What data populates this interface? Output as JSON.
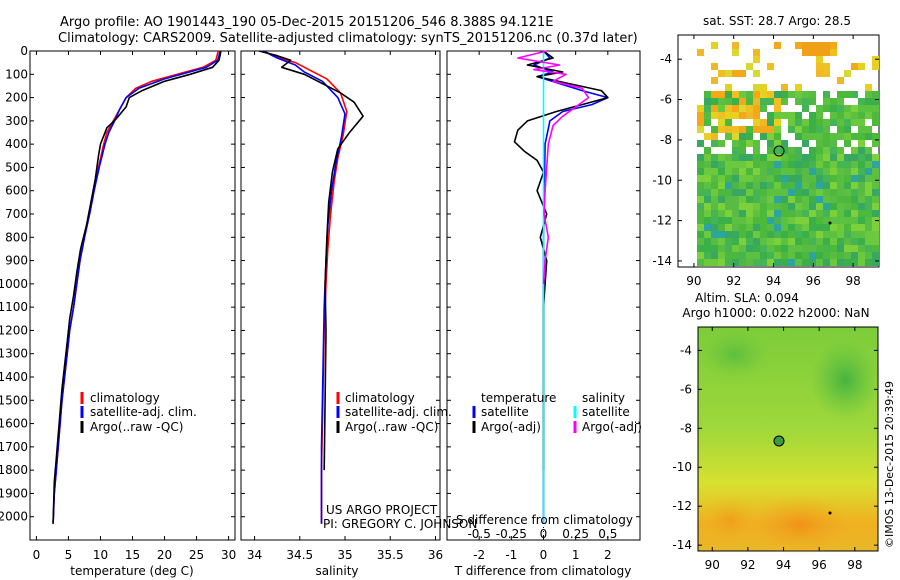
{
  "header": {
    "line1": "Argo profile: AO 1901443_190 05-Dec-2015 20151206_546 8.388S 94.121E",
    "line2": "Climatology: CARS2009. Satellite-adjusted climatology: synTS_20151206.nc (0.37d later)"
  },
  "colors": {
    "climatology": "#ff0000",
    "satellite": "#0000ff",
    "argo": "#000000",
    "sat_salinity": "#00ffff",
    "argo_salinity": "#ff00ff"
  },
  "chart_data": [
    {
      "id": "temperature",
      "type": "line",
      "xlabel": "temperature (deg C)",
      "ylim": [
        2100,
        0
      ],
      "xlim": [
        -1,
        31
      ],
      "xticks": [
        "0",
        "5",
        "10",
        "15",
        "20",
        "25",
        "30"
      ],
      "xtick_values": [
        0,
        5,
        10,
        15,
        20,
        25,
        30
      ],
      "yticks": [
        "0",
        "100",
        "200",
        "300",
        "400",
        "500",
        "600",
        "700",
        "800",
        "900",
        "1000",
        "1100",
        "1200",
        "1300",
        "1400",
        "1500",
        "1600",
        "1700",
        "1800",
        "1900",
        "2000"
      ],
      "legend": [
        "climatology",
        "satellite-adj. clim.",
        "Argo(..raw -QC)"
      ],
      "series": [
        {
          "name": "climatology",
          "color": "#ff0000",
          "x": [
            28.4,
            28.0,
            26.0,
            22.0,
            18.0,
            15.5,
            14.0,
            13.0,
            12.0,
            11.0,
            10.5,
            9.7,
            9.0,
            8.3,
            7.5,
            6.8,
            6.3,
            5.8,
            5.2,
            4.8,
            4.4,
            4.0,
            3.7,
            3.4,
            3.1,
            2.8,
            2.6
          ],
          "y": [
            0,
            40,
            70,
            100,
            130,
            160,
            200,
            250,
            300,
            350,
            400,
            500,
            600,
            700,
            800,
            900,
            1000,
            1100,
            1200,
            1300,
            1400,
            1500,
            1600,
            1700,
            1800,
            1900,
            2030
          ]
        },
        {
          "name": "satellite-adj. clim.",
          "color": "#0000ff",
          "x": [
            28.7,
            28.3,
            26.5,
            20.0,
            16.0,
            14.0,
            13.0,
            12.2,
            11.3,
            10.7,
            9.8,
            9.0,
            8.3,
            7.5,
            6.8,
            6.3,
            5.8,
            5.2,
            4.8,
            4.4,
            4.0,
            3.7,
            3.4,
            3.1,
            2.8,
            2.6
          ],
          "y": [
            0,
            40,
            70,
            120,
            160,
            200,
            250,
            300,
            350,
            400,
            500,
            600,
            700,
            800,
            900,
            1000,
            1100,
            1200,
            1300,
            1400,
            1500,
            1600,
            1700,
            1800,
            1900,
            2030
          ]
        },
        {
          "name": "Argo(..raw -QC)",
          "color": "#000000",
          "x": [
            28.8,
            28.5,
            27.5,
            24.0,
            20.0,
            16.5,
            14.5,
            14.0,
            12.5,
            11.0,
            10.0,
            9.7,
            9.2,
            8.5,
            7.8,
            6.9,
            6.3,
            5.8,
            5.2,
            4.8,
            4.4,
            4.0,
            3.7,
            3.4,
            3.1,
            2.8,
            2.6
          ],
          "y": [
            0,
            40,
            70,
            100,
            130,
            170,
            200,
            240,
            290,
            330,
            400,
            450,
            550,
            650,
            750,
            850,
            950,
            1050,
            1150,
            1250,
            1350,
            1450,
            1550,
            1650,
            1750,
            1850,
            2030
          ]
        }
      ]
    },
    {
      "id": "salinity",
      "type": "line",
      "xlabel": "salinity",
      "ylim": [
        2100,
        0
      ],
      "xlim": [
        33.85,
        36.05
      ],
      "xticks": [
        "34",
        "34.5",
        "35",
        "35.5",
        "36"
      ],
      "xtick_values": [
        34,
        34.5,
        35,
        35.5,
        36
      ],
      "legend": [
        "climatology",
        "satellite-adj. clim.",
        "Argo(..raw -QC)"
      ],
      "series": [
        {
          "name": "climatology",
          "color": "#ff0000",
          "x": [
            34.1,
            34.2,
            34.45,
            34.6,
            34.8,
            34.95,
            35.02,
            34.98,
            34.92,
            34.88,
            34.84,
            34.81,
            34.79,
            34.77,
            34.76,
            34.75,
            34.74,
            34.74,
            34.74
          ],
          "y": [
            0,
            20,
            50,
            80,
            120,
            180,
            260,
            360,
            460,
            560,
            700,
            850,
            1000,
            1200,
            1400,
            1600,
            1800,
            1950,
            2030
          ]
        },
        {
          "name": "satellite-adj. clim.",
          "color": "#0000ff",
          "x": [
            34.1,
            34.25,
            34.45,
            34.55,
            34.75,
            34.92,
            35.0,
            34.96,
            34.9,
            34.85,
            34.81,
            34.79,
            34.77,
            34.76,
            34.75,
            34.74,
            34.74,
            34.74
          ],
          "y": [
            0,
            30,
            60,
            90,
            130,
            200,
            270,
            370,
            480,
            600,
            750,
            900,
            1100,
            1300,
            1500,
            1700,
            1900,
            2030
          ]
        },
        {
          "name": "Argo(..raw -QC)",
          "color": "#000000",
          "x": [
            34.05,
            34.25,
            34.4,
            34.3,
            34.55,
            34.75,
            34.95,
            35.1,
            35.2,
            35.05,
            34.92,
            34.86,
            34.82,
            34.8,
            34.78,
            34.79,
            34.78,
            34.77
          ],
          "y": [
            0,
            20,
            40,
            70,
            100,
            140,
            180,
            220,
            280,
            350,
            420,
            520,
            650,
            800,
            1000,
            1200,
            1500,
            1800
          ]
        }
      ]
    },
    {
      "id": "difference",
      "type": "line",
      "xlabel": "T difference from climatology",
      "xlabel_top": "S difference from climatology",
      "ylim": [
        2100,
        0
      ],
      "xlim": [
        -3,
        3
      ],
      "xticks": [
        "-2",
        "-1",
        "0",
        "1",
        "2"
      ],
      "xtick_values": [
        -2,
        -1,
        0,
        1,
        2
      ],
      "sticks": [
        "-0.5",
        "-0.25",
        "0",
        "0.25",
        "0.5"
      ],
      "stick_values": [
        -2,
        -1,
        0,
        1,
        2
      ],
      "legend": [
        "temperature",
        "satellite",
        "Argo(-adj)",
        "salinity",
        "satellite",
        "Argo(-adj)"
      ],
      "series": [
        {
          "name": "satellite",
          "color": "#0000ff",
          "x": [
            0,
            0.2,
            -0.3,
            0.3,
            -0.2,
            0.5,
            1.2,
            2.0,
            1.5,
            0.6,
            0.2,
            0.05,
            0.0,
            0.0
          ],
          "y": [
            0,
            30,
            60,
            90,
            110,
            140,
            170,
            200,
            230,
            260,
            300,
            400,
            800,
            2030
          ]
        },
        {
          "name": "Argo(-adj)",
          "color": "#000000",
          "x": [
            0,
            0.3,
            -0.5,
            0.6,
            -0.2,
            0.8,
            1.8,
            2.0,
            1.2,
            0.4,
            -0.5,
            -0.8,
            -0.9,
            -0.6,
            -0.2,
            0.0,
            -0.2,
            0.1,
            -0.1,
            0.1,
            0.0,
            0.0
          ],
          "y": [
            0,
            30,
            60,
            90,
            110,
            140,
            170,
            200,
            230,
            260,
            300,
            340,
            390,
            430,
            470,
            520,
            600,
            700,
            800,
            900,
            1100,
            1800
          ]
        },
        {
          "name": "satellite",
          "color": "#00ffff",
          "x": [
            0,
            0,
            0,
            0,
            0,
            0
          ],
          "y": [
            0,
            200,
            600,
            1000,
            1500,
            2030
          ]
        },
        {
          "name": "Argo(-adj)",
          "color": "#ff00ff",
          "x": [
            0.1,
            -0.8,
            0.5,
            -0.3,
            0.7,
            0.3,
            1.2,
            1.4,
            1.0,
            0.6,
            0.3,
            0.15,
            0.1,
            0.05,
            0.02,
            0.15,
            0.05,
            0.0
          ],
          "y": [
            0,
            30,
            60,
            80,
            100,
            130,
            160,
            200,
            240,
            280,
            320,
            400,
            500,
            600,
            700,
            800,
            900,
            1000
          ]
        }
      ]
    }
  ],
  "sst_map": {
    "title": "sat. SST: 28.7  Argo: 28.5",
    "xticks": [
      "90",
      "92",
      "94",
      "96",
      "98"
    ],
    "yticks": [
      "-4",
      "-6",
      "-8",
      "-10",
      "-12",
      "-14"
    ],
    "argo_lon": 94.121,
    "argo_lat": -8.388
  },
  "sla_map": {
    "title1": "Altim. SLA: 0.094",
    "title2": "Argo h1000: 0.022 h2000: NaN",
    "xticks": [
      "90",
      "92",
      "94",
      "96",
      "98"
    ],
    "yticks": [
      "-4",
      "-6",
      "-8",
      "-10",
      "-12",
      "-14"
    ],
    "argo_lon": 94.121,
    "argo_lat": -8.388
  },
  "footer": {
    "project": "US ARGO PROJECT",
    "pi": "PI: GREGORY C. JOHNSON",
    "credit": "©IMOS 13-Dec-2015 20:39:49"
  }
}
